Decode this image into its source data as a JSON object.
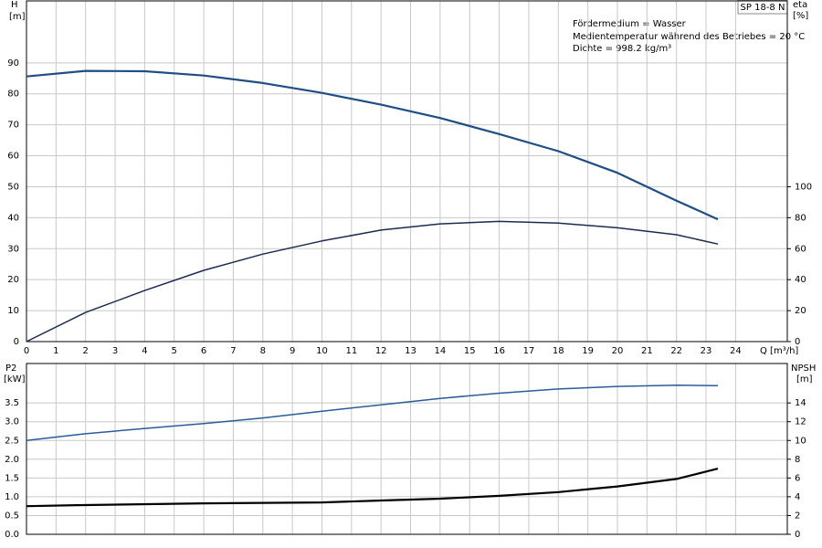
{
  "chart_data": [
    {
      "type": "line",
      "model": "SP 18-8 N",
      "annotations": [
        "Fördermedium = Wasser",
        "Medientemperatur während des Betriebes = 20 °C",
        "Dichte = 998.2 kg/m³"
      ],
      "y_label": "H",
      "y_unit": "[m]",
      "y2_label": "eta",
      "y2_unit": "[%]",
      "x_label": "Q [m³/h]",
      "xlim": [
        0,
        25.75
      ],
      "xticks": [
        0,
        1,
        2,
        3,
        4,
        5,
        6,
        7,
        8,
        9,
        10,
        11,
        12,
        13,
        14,
        15,
        16,
        17,
        18,
        19,
        20,
        21,
        22,
        23,
        24
      ],
      "ylim": [
        0,
        110
      ],
      "yticks": [
        0,
        10,
        20,
        30,
        40,
        50,
        60,
        70,
        80,
        90
      ],
      "y2lim": [
        0,
        220
      ],
      "y2ticks": [
        0,
        20,
        40,
        60,
        80,
        100
      ],
      "grid": true,
      "series": [
        {
          "name": "H",
          "color": "#1f4e85",
          "width": 2.2,
          "x": [
            0,
            2,
            4,
            6,
            8,
            10,
            12,
            14,
            16,
            18,
            20,
            22,
            23.4
          ],
          "values": [
            85.6,
            87.4,
            87.3,
            85.9,
            83.5,
            80.3,
            76.5,
            72.2,
            67,
            61.5,
            54.5,
            45.5,
            39.5
          ]
        },
        {
          "name": "eta",
          "color": "#1c2b4f",
          "width": 1.5,
          "axis": "y2",
          "x": [
            0,
            2,
            4,
            6,
            8,
            10,
            12,
            14,
            16,
            18,
            20,
            22,
            23.4
          ],
          "values": [
            0,
            18.8,
            33,
            46,
            56.5,
            65,
            72,
            76,
            77.6,
            76.5,
            73.5,
            69,
            63
          ]
        }
      ]
    },
    {
      "type": "line",
      "y_label": "P2",
      "y_unit": "[kW]",
      "y2_label": "NPSH",
      "y2_unit": "[m]",
      "xlim": [
        0,
        25.75
      ],
      "ylim": [
        0,
        4.55
      ],
      "yticks": [
        {
          "value": 0,
          "label": "0.0"
        },
        0.5,
        {
          "value": 1,
          "label": "1.0"
        },
        1.5,
        {
          "value": 2,
          "label": "2.0"
        },
        2.5,
        {
          "value": 3,
          "label": "3.0"
        },
        3.5
      ],
      "y2lim": [
        0,
        18.2
      ],
      "y2ticks": [
        0,
        2,
        4,
        6,
        8,
        10,
        12,
        14
      ],
      "grid": true,
      "series": [
        {
          "name": "P2",
          "color": "#2a5c9a",
          "width": 1.5,
          "x": [
            0,
            2,
            4,
            6,
            8,
            10,
            12,
            14,
            16,
            18,
            20,
            22,
            23.4
          ],
          "values": [
            2.5,
            2.68,
            2.82,
            2.95,
            3.1,
            3.28,
            3.45,
            3.62,
            3.76,
            3.87,
            3.94,
            3.97,
            3.96
          ]
        },
        {
          "name": "NPSH",
          "color": "#000000",
          "width": 2.2,
          "axis": "y2",
          "x": [
            0,
            1.7,
            6,
            10,
            12,
            14,
            16,
            18,
            20,
            22,
            23.4
          ],
          "values": [
            3.0,
            3.1,
            3.3,
            3.4,
            3.6,
            3.8,
            4.1,
            4.5,
            5.1,
            5.9,
            7.0
          ]
        }
      ]
    }
  ]
}
